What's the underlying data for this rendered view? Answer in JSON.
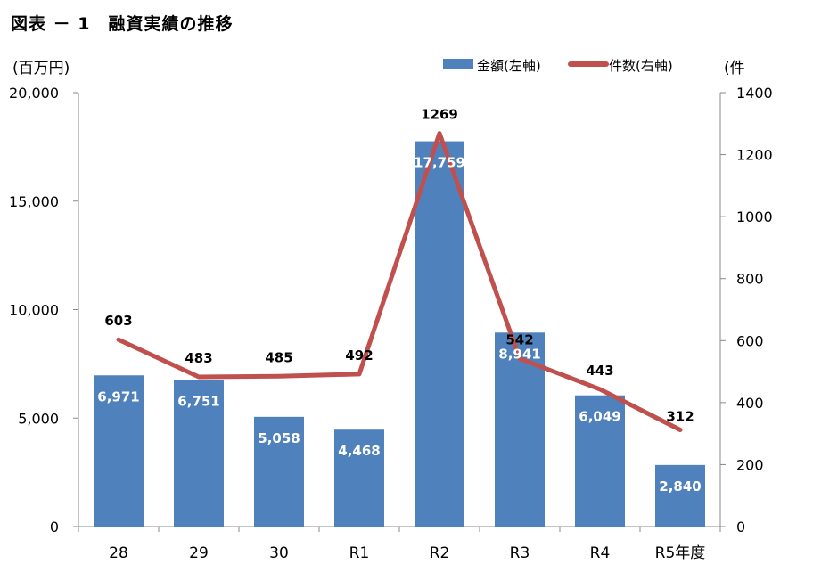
{
  "page": {
    "title": "図表 － 1　融資実績の推移"
  },
  "chart_data": {
    "type": "bar",
    "categories": [
      "28",
      "29",
      "30",
      "R1",
      "R2",
      "R3",
      "R4",
      "R5年度"
    ],
    "series": [
      {
        "name": "金額(左軸)",
        "type": "bar",
        "axis": "left",
        "values": [
          6971,
          6751,
          5058,
          4468,
          17759,
          8941,
          6049,
          2840
        ],
        "value_labels": [
          "6,971",
          "6,751",
          "5,058",
          "4,468",
          "17,759",
          "8,941",
          "6,049",
          "2,840"
        ],
        "color": "#4F81BD"
      },
      {
        "name": "件数(右軸)",
        "type": "line",
        "axis": "right",
        "values": [
          603,
          483,
          485,
          492,
          1269,
          542,
          443,
          312
        ],
        "value_labels": [
          "603",
          "483",
          "485",
          "492",
          "1269",
          "542",
          "443",
          "312"
        ],
        "color": "#C0504D"
      }
    ],
    "y_left": {
      "unit_label": "(百万円)",
      "ylim": [
        0,
        20000
      ],
      "ticks": [
        0,
        5000,
        10000,
        15000,
        20000
      ],
      "tick_labels": [
        "0",
        "5,000",
        "10,000",
        "15,000",
        "20,000"
      ]
    },
    "y_right": {
      "unit_label": "(件",
      "ylim": [
        0,
        1400
      ],
      "ticks": [
        0,
        200,
        400,
        600,
        800,
        1000,
        1200,
        1400
      ],
      "tick_labels": [
        "0",
        "200",
        "400",
        "600",
        "800",
        "1000",
        "1200",
        "1400"
      ]
    },
    "grid": false,
    "legend_position": "top-right"
  }
}
